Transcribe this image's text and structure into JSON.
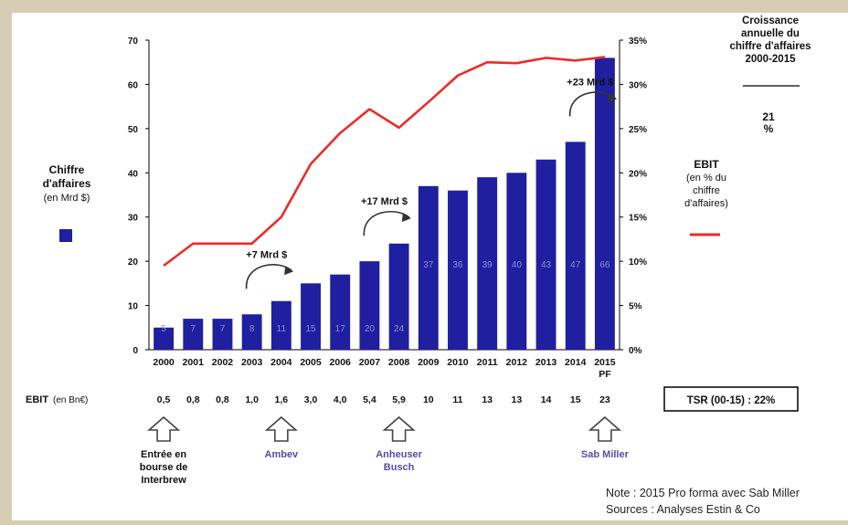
{
  "chart_data": {
    "type": "bar",
    "title": "",
    "categories": [
      "2000",
      "2001",
      "2002",
      "2003",
      "2004",
      "2005",
      "2006",
      "2007",
      "2008",
      "2009",
      "2010",
      "2011",
      "2012",
      "2013",
      "2014",
      "2015"
    ],
    "category_sublabels": {
      "2015": "PF"
    },
    "series": [
      {
        "name": "Chiffre d'affaires (en Mrd $)",
        "type": "bar",
        "axis": "left",
        "color": "#1f1fa0",
        "values": [
          5,
          7,
          7,
          8,
          11,
          15,
          17,
          20,
          24,
          37,
          36,
          39,
          40,
          43,
          47,
          66
        ],
        "labels": [
          "5",
          "7",
          "7",
          "8",
          "11",
          "15",
          "17",
          "20",
          "24",
          "37",
          "36",
          "39",
          "40",
          "43",
          "47",
          "66"
        ]
      },
      {
        "name": "EBIT (en % du chiffre d'affaires)",
        "type": "line",
        "axis": "right",
        "color": "#ee2a2a",
        "values": [
          9.5,
          12,
          12,
          12,
          15,
          21,
          24.5,
          27.2,
          25.1,
          28,
          31,
          32.5,
          32.4,
          33,
          32.7,
          33.1
        ]
      }
    ],
    "left_axis": {
      "min": 0,
      "max": 70,
      "ticks": [
        0,
        10,
        20,
        30,
        40,
        50,
        60,
        70
      ],
      "label": [
        "Chiffre",
        "d'affaires",
        "(en Mrd $)"
      ]
    },
    "right_axis": {
      "min": 0,
      "max": 35,
      "ticks": [
        "0%",
        "5%",
        "10%",
        "15%",
        "20%",
        "25%",
        "30%",
        "35%"
      ],
      "label": [
        "EBIT",
        "(en % du",
        "chiffre",
        "d'affaires)"
      ]
    },
    "ebit_row": {
      "label": "EBIT",
      "unit": "(en Bn€)",
      "values": [
        "0,5",
        "0,8",
        "0,8",
        "1,0",
        "1,6",
        "3,0",
        "4,0",
        "5,4",
        "5,9",
        "10",
        "11",
        "13",
        "13",
        "14",
        "15",
        "23"
      ]
    },
    "annotations": [
      {
        "text": "+7 Mrd $",
        "category": "2003"
      },
      {
        "text": "+17 Mrd $",
        "category": "2007"
      },
      {
        "text": "+23 Mrd $",
        "category": "2014"
      }
    ],
    "milestones": [
      {
        "category": "2000",
        "lines": [
          "Entrée en",
          "bourse de",
          "Interbrew"
        ],
        "color": "#111111"
      },
      {
        "category": "2004",
        "lines": [
          "Ambev"
        ],
        "color": "#5a4aa8"
      },
      {
        "category": "2008",
        "lines": [
          "Anheuser",
          "Busch"
        ],
        "color": "#5a4aa8"
      },
      {
        "category": "2015",
        "lines": [
          "Sab Miller"
        ],
        "color": "#5a4aa8"
      }
    ],
    "side_box": {
      "title": [
        "Croissance",
        "annuelle du",
        "chiffre d'affaires",
        "2000-2015"
      ],
      "value": [
        "21",
        "%"
      ]
    },
    "tsr": "TSR (00-15) : 22%"
  },
  "notes": {
    "line1": "Note : 2015 Pro forma avec Sab Miller",
    "line2": "Sources : Analyses Estin & Co"
  }
}
